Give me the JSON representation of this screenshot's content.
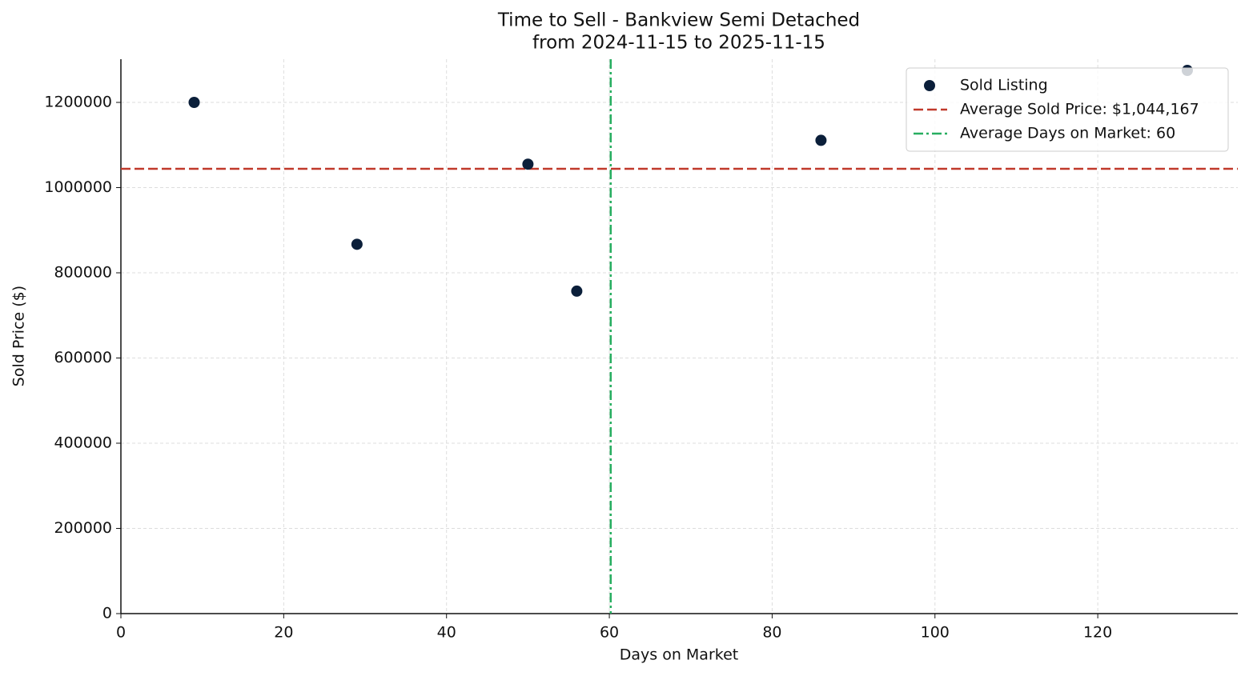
{
  "chart_data": {
    "type": "scatter",
    "title": "Time to Sell - Bankview Semi Detached",
    "subtitle": "from 2024-11-15 to 2025-11-15",
    "x_label": "Days on Market",
    "y_label": "Sold Price ($)",
    "series": [
      {
        "name": "Sold Listing",
        "color": "#0b1f3a",
        "x": [
          9,
          29,
          50,
          56,
          86,
          131
        ],
        "values": [
          1200000,
          867000,
          1055000,
          757000,
          1111000,
          1275000
        ]
      }
    ],
    "reference_lines": [
      {
        "name": "Average Sold Price: $1,044,167",
        "axis": "y",
        "value": 1044167,
        "color": "#c0392b",
        "dash": "dashed"
      },
      {
        "name": "Average Days on Market: 60",
        "axis": "x",
        "value": 60.17,
        "color": "#27ae60",
        "dash": "dashdot"
      }
    ],
    "xlim": [
      0,
      137.2
    ],
    "ylim": [
      0,
      1301400
    ],
    "xticks": [
      0,
      20,
      40,
      60,
      80,
      100,
      120
    ],
    "yticks": [
      0,
      200000,
      400000,
      600000,
      800000,
      1000000,
      1200000
    ],
    "grid": true,
    "legend": "upper right"
  }
}
